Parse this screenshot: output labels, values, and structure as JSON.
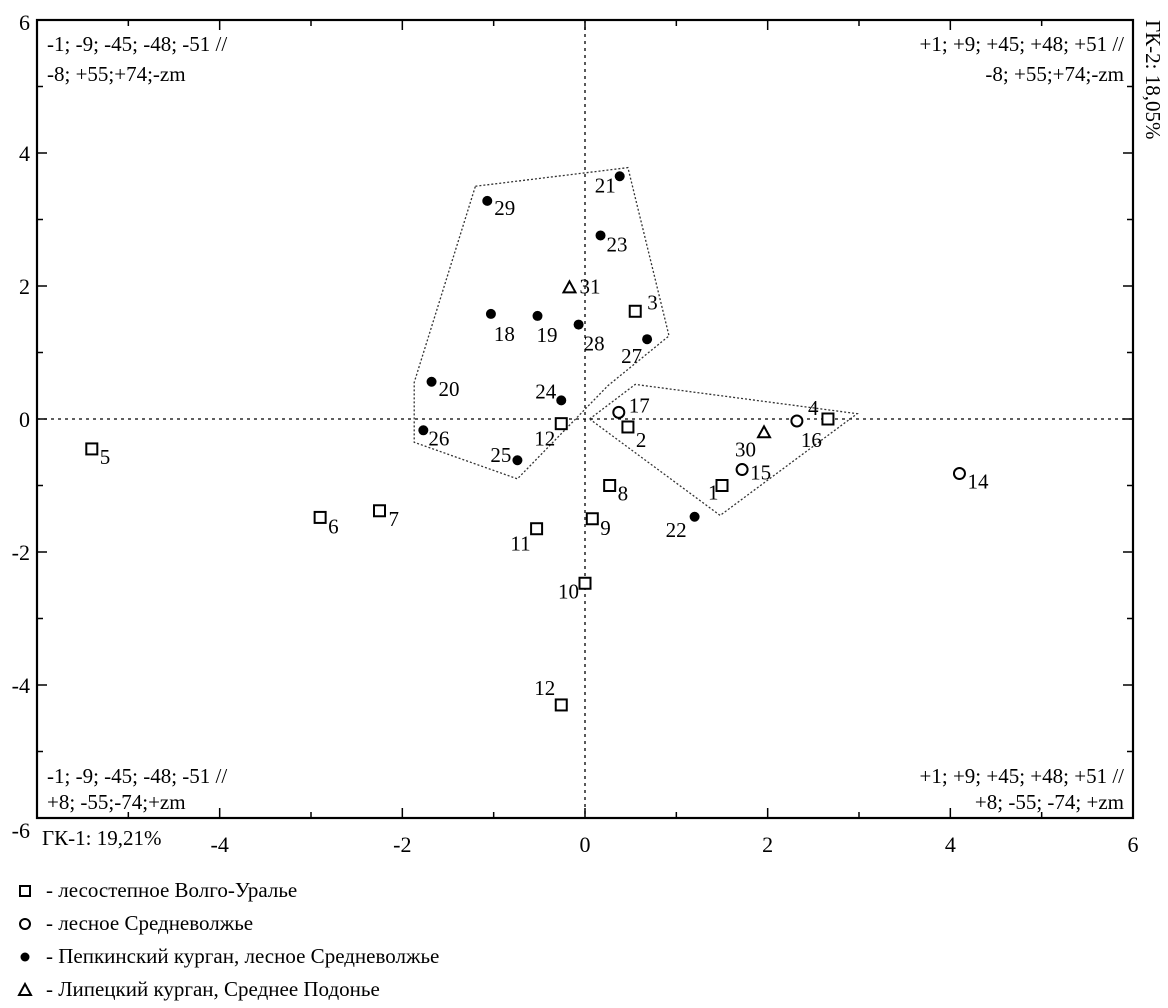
{
  "chart_data": {
    "type": "scatter",
    "title": "",
    "xlabel": "ГК-1: 19,21%",
    "ylabel": "ГК-2: 18,05%",
    "xlim": [
      -6,
      6
    ],
    "ylim": [
      -6,
      6
    ],
    "xticks": [
      "-6",
      "-4",
      "-2",
      "0",
      "2",
      "4",
      "6"
    ],
    "yticks": [
      "6",
      "4",
      "2",
      "0",
      "-2",
      "-4",
      "-6"
    ],
    "grid": false,
    "legend_position": "bottom",
    "quadrant_labels": {
      "top_left": [
        "-1; -9; -45; -48; -51 //",
        "-8; +55;+74;-zm"
      ],
      "top_right": [
        "+1; +9; +45; +48; +51 //",
        "-8; +55;+74;-zm"
      ],
      "bottom_left": [
        "-1; -9; -45; -48; -51 //",
        "+8; -55;-74;+zm"
      ],
      "bottom_right": [
        "+1; +9; +45; +48; +51 //",
        "+8; -55; -74; +zm"
      ]
    },
    "series": [
      {
        "name": "- лесостепное Волго-Уралье",
        "marker": "open-square",
        "points": [
          {
            "label": "1",
            "x": 1.5,
            "y": -1.0
          },
          {
            "label": "2",
            "x": 0.47,
            "y": -0.12
          },
          {
            "label": "3",
            "x": 0.55,
            "y": 1.62
          },
          {
            "label": "4",
            "x": 2.66,
            "y": 0.0
          },
          {
            "label": "5",
            "x": -5.4,
            "y": -0.45
          },
          {
            "label": "6",
            "x": -2.9,
            "y": -1.48
          },
          {
            "label": "7",
            "x": -2.25,
            "y": -1.38
          },
          {
            "label": "8",
            "x": 0.27,
            "y": -1.0
          },
          {
            "label": "9",
            "x": 0.08,
            "y": -1.5
          },
          {
            "label": "10",
            "x": 0.0,
            "y": -2.47
          },
          {
            "label": "11",
            "x": -0.53,
            "y": -1.65
          },
          {
            "label": "12",
            "x": -0.26,
            "y": -0.07
          },
          {
            "label": "12",
            "x": -0.26,
            "y": -4.3
          }
        ]
      },
      {
        "name": "- лесное Средневолжье",
        "marker": "open-circle",
        "points": [
          {
            "label": "14",
            "x": 4.1,
            "y": -0.82
          },
          {
            "label": "15",
            "x": 1.72,
            "y": -0.76
          },
          {
            "label": "16",
            "x": 2.32,
            "y": -0.03
          },
          {
            "label": "17",
            "x": 0.37,
            "y": 0.1
          }
        ]
      },
      {
        "name": "- Пепкинский курган, лесное Средневолжье",
        "marker": "filled-circle",
        "points": [
          {
            "label": "18",
            "x": -1.03,
            "y": 1.58
          },
          {
            "label": "19",
            "x": -0.52,
            "y": 1.55
          },
          {
            "label": "20",
            "x": -1.68,
            "y": 0.56
          },
          {
            "label": "21",
            "x": 0.38,
            "y": 3.65
          },
          {
            "label": "22",
            "x": 1.2,
            "y": -1.47
          },
          {
            "label": "23",
            "x": 0.17,
            "y": 2.76
          },
          {
            "label": "24",
            "x": -0.26,
            "y": 0.28
          },
          {
            "label": "25",
            "x": -0.74,
            "y": -0.62
          },
          {
            "label": "26",
            "x": -1.77,
            "y": -0.17
          },
          {
            "label": "27",
            "x": 0.68,
            "y": 1.2
          },
          {
            "label": "28",
            "x": -0.07,
            "y": 1.42
          },
          {
            "label": "29",
            "x": -1.07,
            "y": 3.28
          }
        ]
      },
      {
        "name": "- Липецкий курган, Среднее Подонье",
        "marker": "open-triangle",
        "points": [
          {
            "label": "30",
            "x": 1.96,
            "y": -0.2
          },
          {
            "label": "31",
            "x": -0.17,
            "y": 1.98
          }
        ]
      }
    ],
    "hulls": [
      {
        "points": [
          [
            -1.2,
            3.5
          ],
          [
            0.47,
            3.78
          ],
          [
            0.92,
            1.25
          ],
          [
            0.25,
            0.5
          ],
          [
            -0.74,
            -0.9
          ],
          [
            -1.87,
            -0.35
          ],
          [
            -1.87,
            0.55
          ]
        ]
      },
      {
        "points": [
          [
            0.05,
            0.0
          ],
          [
            0.55,
            0.52
          ],
          [
            2.98,
            0.08
          ],
          [
            1.48,
            -1.45
          ]
        ]
      }
    ]
  }
}
